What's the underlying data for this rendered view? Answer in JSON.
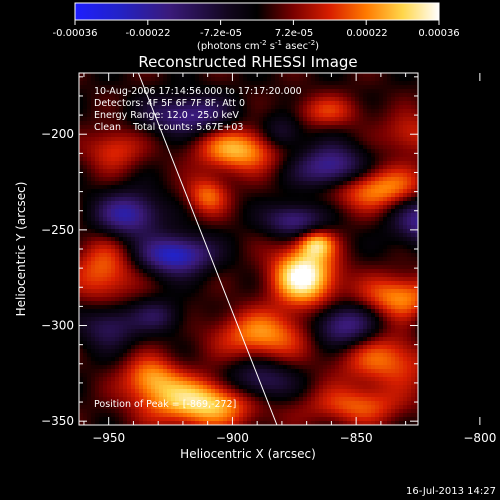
{
  "colorbar": {
    "ticks": [
      "-0.00036",
      "-0.00022",
      "-7.2e-05",
      "7.2e-05",
      "0.00022",
      "0.00036"
    ],
    "units_main": "(photons cm",
    "units_sup1": "-2",
    "units_mid": " s",
    "units_sup2": "-1",
    "units_end": " asec",
    "units_sup3": "-2",
    "units_close": ")",
    "range": [
      -0.00036,
      0.00036
    ]
  },
  "chart_data": {
    "type": "heatmap",
    "title": "Reconstructed RHESSI Image",
    "xlabel": "Heliocentric X (arcsec)",
    "ylabel": "Heliocentric Y (arcsec)",
    "xlim": [
      -962,
      -825
    ],
    "ylim": [
      -352,
      -168
    ],
    "xticks": [
      -950,
      -900,
      -850,
      -800
    ],
    "yticks": [
      -200,
      -250,
      -300,
      -350
    ],
    "annotations": [
      "10-Aug-2006 17:14:56.000 to 17:17:20.000",
      "Detectors: 4F 5F 6F 7F 8F, Att 0",
      "Energy Range: 12.0 - 25.0 keV",
      "Clean    Total counts: 5.67E+03"
    ],
    "peak_label": "Position of Peak = [-869,-272]",
    "peak": {
      "x": -869,
      "y": -272
    },
    "colormap": "RHESSI blue-black-red-yellow-white",
    "colorscale": {
      "stops": [
        [
          0.0,
          "#1e1eff"
        ],
        [
          0.12,
          "#2222c8"
        ],
        [
          0.26,
          "#3a1a7a"
        ],
        [
          0.42,
          "#12061e"
        ],
        [
          0.5,
          "#000000"
        ],
        [
          0.6,
          "#7a0000"
        ],
        [
          0.7,
          "#d81e00"
        ],
        [
          0.8,
          "#ff7a00"
        ],
        [
          0.9,
          "#ffd64a"
        ],
        [
          1.0,
          "#ffffff"
        ]
      ]
    },
    "blobs": [
      {
        "x": -871,
        "y": -274,
        "sx": 9,
        "sy": 11,
        "amp": 1.0
      },
      {
        "x": -866,
        "y": -257,
        "sx": 5,
        "sy": 5,
        "amp": 0.55
      },
      {
        "x": -912,
        "y": -340,
        "sx": 16,
        "sy": 9,
        "amp": 0.85
      },
      {
        "x": -933,
        "y": -327,
        "sx": 8,
        "sy": 8,
        "amp": 0.55
      },
      {
        "x": -888,
        "y": -305,
        "sx": 13,
        "sy": 9,
        "amp": 0.6
      },
      {
        "x": -897,
        "y": -208,
        "sx": 12,
        "sy": 8,
        "amp": 0.7
      },
      {
        "x": -910,
        "y": -232,
        "sx": 6,
        "sy": 7,
        "amp": 0.5
      },
      {
        "x": -842,
        "y": -228,
        "sx": 14,
        "sy": 8,
        "amp": 0.65
      },
      {
        "x": -832,
        "y": -285,
        "sx": 12,
        "sy": 8,
        "amp": 0.6
      },
      {
        "x": -838,
        "y": -318,
        "sx": 14,
        "sy": 10,
        "amp": 0.5
      },
      {
        "x": -952,
        "y": -272,
        "sx": 9,
        "sy": 12,
        "amp": 0.5
      },
      {
        "x": -850,
        "y": -342,
        "sx": 14,
        "sy": 7,
        "amp": 0.45
      },
      {
        "x": -802,
        "y": -258,
        "sx": 10,
        "sy": 10,
        "amp": 0.4
      },
      {
        "x": -948,
        "y": -208,
        "sx": 8,
        "sy": 8,
        "amp": 0.4
      },
      {
        "x": -828,
        "y": -200,
        "sx": 8,
        "sy": 8,
        "amp": 0.35
      },
      {
        "x": -862,
        "y": -188,
        "sx": 10,
        "sy": 6,
        "amp": 0.35
      },
      {
        "x": -923,
        "y": -263,
        "sx": 10,
        "sy": 7,
        "amp": -0.85
      },
      {
        "x": -942,
        "y": -242,
        "sx": 9,
        "sy": 8,
        "amp": -0.7
      },
      {
        "x": -860,
        "y": -218,
        "sx": 10,
        "sy": 8,
        "amp": -0.75
      },
      {
        "x": -875,
        "y": -245,
        "sx": 8,
        "sy": 6,
        "amp": -0.6
      },
      {
        "x": -820,
        "y": -245,
        "sx": 10,
        "sy": 9,
        "amp": -0.7
      },
      {
        "x": -918,
        "y": -190,
        "sx": 12,
        "sy": 7,
        "amp": -0.6
      },
      {
        "x": -890,
        "y": -330,
        "sx": 10,
        "sy": 8,
        "amp": -0.55
      },
      {
        "x": -855,
        "y": -300,
        "sx": 9,
        "sy": 8,
        "amp": -0.65
      },
      {
        "x": -812,
        "y": -300,
        "sx": 8,
        "sy": 10,
        "amp": -0.55
      },
      {
        "x": -950,
        "y": -300,
        "sx": 8,
        "sy": 8,
        "amp": -0.45
      },
      {
        "x": -930,
        "y": -295,
        "sx": 7,
        "sy": 6,
        "amp": -0.35
      },
      {
        "x": -880,
        "y": -200,
        "sx": 6,
        "sy": 7,
        "amp": -0.4
      }
    ],
    "limb": [
      {
        "x": -938,
        "y": -168
      },
      {
        "x": -882,
        "y": -352
      }
    ]
  },
  "footer": {
    "timestamp": "16-Jul-2013 14:27"
  }
}
